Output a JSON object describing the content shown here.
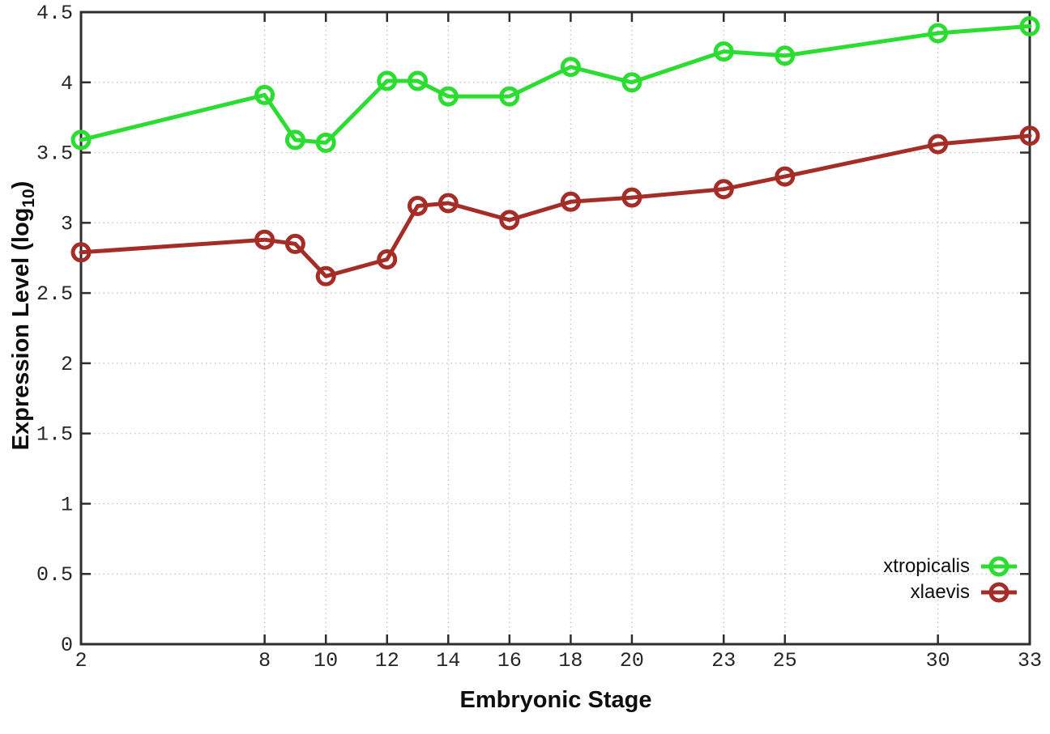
{
  "chart_data": {
    "type": "line",
    "title": "",
    "xlabel": "Embryonic Stage",
    "ylabel": "Expression Level (log10)",
    "ylabel_parts": {
      "main": "Expression Level (log",
      "sub": "10",
      "close": ")"
    },
    "xlim": [
      2,
      33
    ],
    "ylim": [
      0,
      4.5
    ],
    "x_ticks": [
      "2",
      "8",
      "10",
      "12",
      "14",
      "16",
      "18",
      "20",
      "23",
      "25",
      "30",
      "33"
    ],
    "y_ticks": [
      "0",
      "0.5",
      "1",
      "1.5",
      "2",
      "2.5",
      "3",
      "3.5",
      "4",
      "4.5"
    ],
    "grid": true,
    "legend_position": "inside-bottom-right",
    "x": [
      2,
      8,
      9,
      10,
      12,
      13,
      14,
      16,
      18,
      20,
      23,
      25,
      30,
      33
    ],
    "series": [
      {
        "name": "xtropicalis",
        "color": "#2bdc31",
        "marker": "open-circle",
        "values": [
          3.59,
          3.91,
          3.59,
          3.57,
          4.01,
          4.01,
          3.9,
          3.9,
          4.11,
          4.0,
          4.22,
          4.19,
          4.35,
          4.4
        ]
      },
      {
        "name": "xlaevis",
        "color": "#a52d28",
        "marker": "open-circle",
        "values": [
          2.79,
          2.88,
          2.85,
          2.62,
          2.74,
          3.12,
          3.14,
          3.02,
          3.15,
          3.18,
          3.24,
          3.33,
          3.56,
          3.62
        ]
      }
    ]
  },
  "colors": {
    "background": "#ffffff",
    "axis": "#2e2e2e",
    "grid": "#bcbcbc",
    "tick_text": "#262626",
    "label_text": "#0e0e0e"
  }
}
